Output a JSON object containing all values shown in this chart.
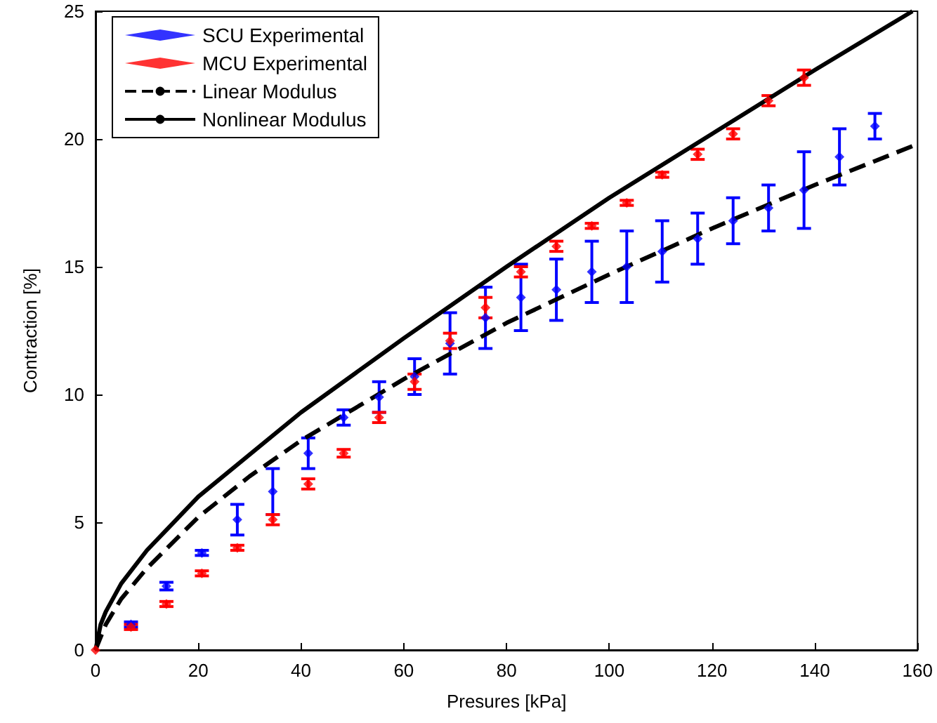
{
  "chart_data": {
    "type": "scatter",
    "xlabel": "Presures [kPa]",
    "ylabel": "Contraction [%]",
    "xlim": [
      0,
      160
    ],
    "ylim": [
      0,
      25
    ],
    "xticks": [
      0,
      20,
      40,
      60,
      80,
      100,
      120,
      140,
      160
    ],
    "yticks": [
      0,
      5,
      10,
      15,
      20,
      25
    ],
    "grid": false,
    "legend": "top left",
    "series": [
      {
        "name": "SCU Experimental",
        "marker": "diamond",
        "color": "#0000ff",
        "x": [
          6.9,
          13.8,
          20.7,
          27.6,
          34.5,
          41.4,
          48.3,
          55.2,
          62.1,
          69,
          75.9,
          82.8,
          89.7,
          96.6,
          103.4,
          110.3,
          117.2,
          124.1,
          131,
          137.9,
          144.8,
          151.7
        ],
        "values": [
          1.0,
          2.5,
          3.8,
          5.1,
          6.2,
          7.7,
          9.1,
          9.9,
          10.7,
          12.0,
          13.0,
          13.8,
          14.1,
          14.8,
          15.0,
          15.6,
          16.1,
          16.8,
          17.3,
          18.0,
          19.3,
          20.5
        ],
        "errors": [
          0.1,
          0.15,
          0.1,
          0.6,
          0.9,
          0.6,
          0.3,
          0.6,
          0.7,
          1.2,
          1.2,
          1.3,
          1.2,
          1.2,
          1.4,
          1.2,
          1.0,
          0.9,
          0.9,
          1.5,
          1.1,
          0.5
        ]
      },
      {
        "name": "MCU Experimental",
        "marker": "diamond",
        "color": "#ff0000",
        "x": [
          0,
          6.9,
          13.8,
          20.7,
          27.6,
          34.5,
          41.4,
          48.3,
          55.2,
          62.1,
          69,
          75.9,
          82.8,
          89.7,
          96.6,
          103.4,
          110.3,
          117.2,
          124.1,
          131,
          137.9
        ],
        "values": [
          0,
          0.9,
          1.8,
          3.0,
          4.0,
          5.1,
          6.5,
          7.7,
          9.1,
          10.5,
          12.1,
          13.4,
          14.8,
          15.8,
          16.6,
          17.5,
          18.6,
          19.4,
          20.2,
          21.5,
          22.4
        ],
        "errors": [
          null,
          0.1,
          0.1,
          0.1,
          0.1,
          0.2,
          0.2,
          0.15,
          0.2,
          0.3,
          0.3,
          0.4,
          0.2,
          0.2,
          0.1,
          0.1,
          0.1,
          0.2,
          0.2,
          0.2,
          0.3
        ]
      },
      {
        "name": "Linear Modulus",
        "type": "line",
        "marker": "none",
        "line_style": "dashed",
        "color": "#000000",
        "x": [
          0,
          2,
          5,
          10,
          20,
          30,
          40,
          60,
          80,
          100,
          120,
          140,
          160
        ],
        "values": [
          0,
          1.0,
          2.0,
          3.2,
          5.2,
          6.8,
          8.2,
          10.6,
          12.8,
          14.7,
          16.5,
          18.2,
          19.8
        ]
      },
      {
        "name": "Nonlinear Modulus",
        "type": "line",
        "marker": "none",
        "line_style": "solid",
        "color": "#000000",
        "x": [
          0,
          1,
          2,
          5,
          10,
          20,
          40,
          60,
          80,
          100,
          120,
          140,
          159
        ],
        "values": [
          0,
          1.0,
          1.5,
          2.6,
          3.9,
          6.0,
          9.3,
          12.2,
          15.0,
          17.7,
          20.2,
          22.7,
          25
        ]
      }
    ]
  }
}
